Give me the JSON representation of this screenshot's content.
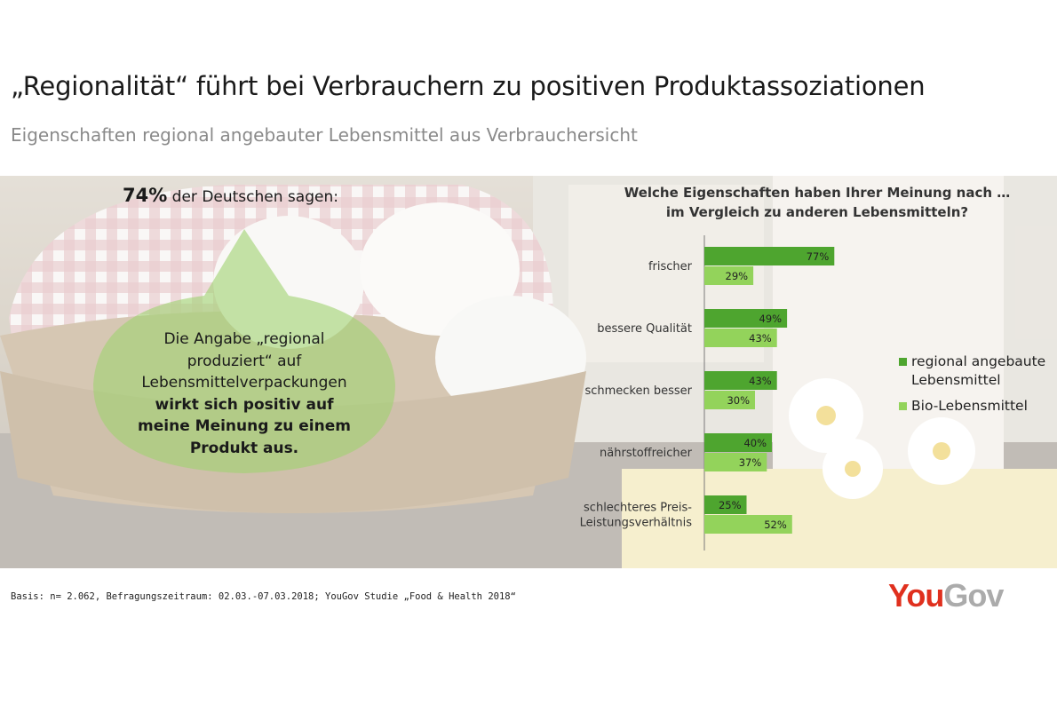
{
  "header": {
    "title": "„Regionalität“ führt bei Verbrauchern zu positiven Produktassoziationen",
    "subtitle": "Eigenschaften regional angebauter Lebensmittel aus Verbrauchersicht"
  },
  "left_panel": {
    "headline_pct": "74%",
    "headline_rest": " der Deutschen  sagen:",
    "bubble_lines": [
      "Die Angabe „regional",
      "produziert“ auf",
      "Lebensmittelverpackungen",
      "wirkt sich positiv auf",
      "meine Meinung zu einem",
      "Produkt aus."
    ],
    "bubble_color": "#9fd26f"
  },
  "chart_data": {
    "type": "bar",
    "orientation": "horizontal",
    "title_lines": [
      "Welche Eigenschaften haben Ihrer Meinung nach …",
      "im Vergleich zu anderen Lebensmitteln?"
    ],
    "categories": [
      [
        "frischer"
      ],
      [
        "bessere Qualität"
      ],
      [
        "schmecken besser"
      ],
      [
        "nährstoffreicher"
      ],
      [
        "schlechteres Preis-",
        "Leistungsverhältnis"
      ]
    ],
    "series": [
      {
        "name": "regional angebaute Lebensmittel",
        "legend_lines": [
          "regional angebaute",
          "Lebensmittel"
        ],
        "values": [
          77,
          49,
          43,
          40,
          25
        ],
        "labels": [
          "77%",
          "49%",
          "43%",
          "40%",
          "25%"
        ],
        "color": "#4ea52f"
      },
      {
        "name": "Bio-Lebensmittel",
        "legend_lines": [
          "Bio-Lebensmittel"
        ],
        "values": [
          29,
          43,
          30,
          37,
          52
        ],
        "labels": [
          "29%",
          "43%",
          "30%",
          "37%",
          "52%"
        ],
        "color": "#93d35b"
      }
    ],
    "unit": "%",
    "xlim": [
      0,
      100
    ],
    "grid": false,
    "legend_position": "right"
  },
  "footer": {
    "basis": "Basis: n= 2.062, Befragungszeitraum: 02.03.-07.03.2018; YouGov Studie „Food & Health 2018“"
  },
  "logo": {
    "part1": "You",
    "part2": "Gov"
  }
}
